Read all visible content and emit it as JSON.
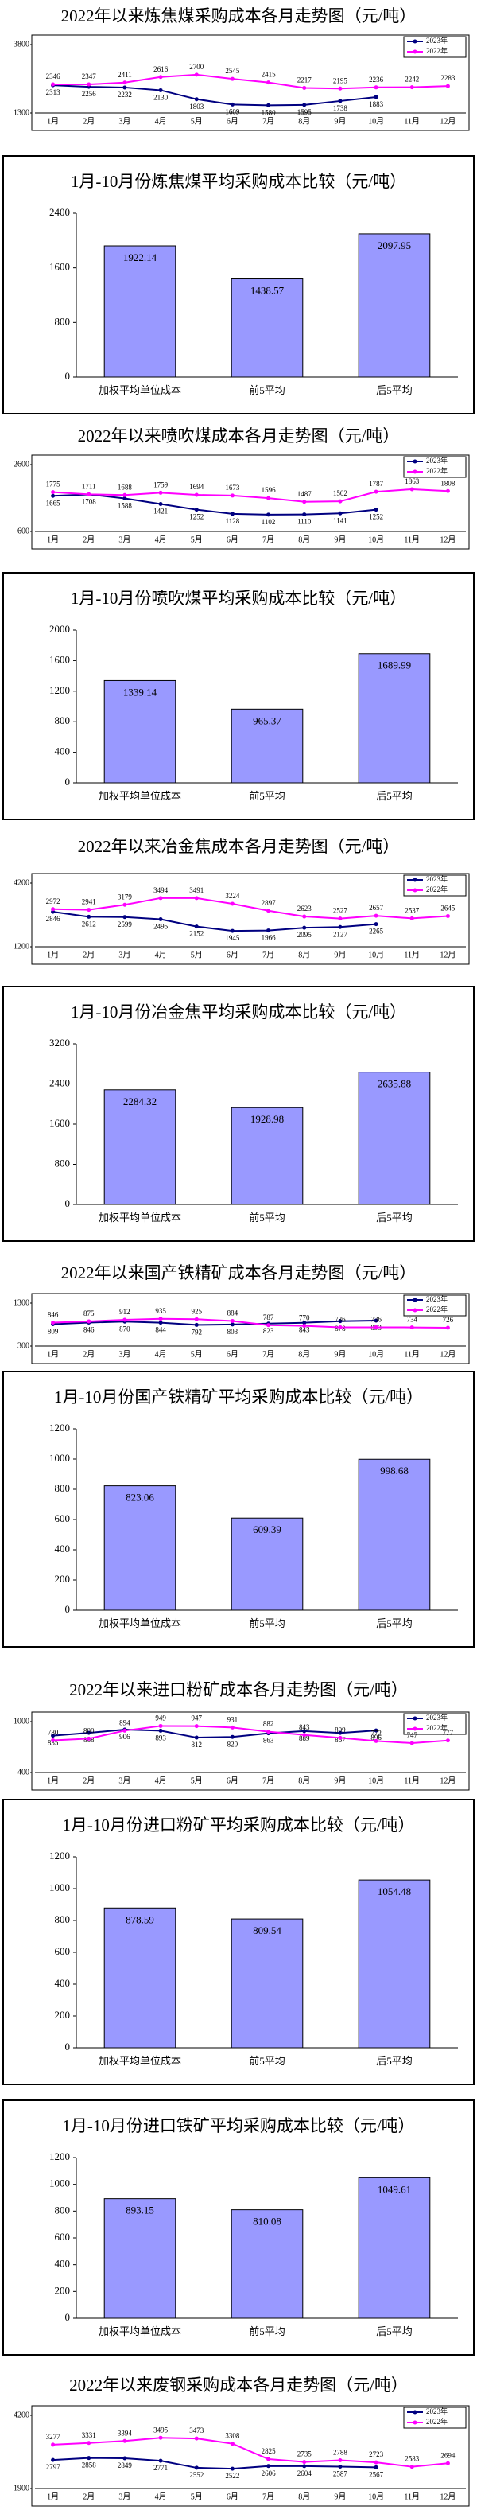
{
  "chart_data": [
    {
      "type": "line",
      "title": "2022年以来炼焦煤采购成本各月走势图（元/吨）",
      "categories": [
        "1月",
        "2月",
        "3月",
        "4月",
        "5月",
        "6月",
        "7月",
        "8月",
        "9月",
        "10月",
        "11月",
        "12月"
      ],
      "series": [
        {
          "name": "2023年",
          "color": "#000080",
          "values": [
            2313,
            2256,
            2232,
            2130,
            1803,
            1609,
            1580,
            1595,
            1738,
            1883,
            null,
            null
          ]
        },
        {
          "name": "2022年",
          "color": "#ff00ff",
          "values": [
            2346,
            2347,
            2411,
            2616,
            2700,
            2545,
            2415,
            2217,
            2195,
            2236,
            2242,
            2283
          ]
        }
      ],
      "ylim": [
        1300,
        3800
      ],
      "yticks": [
        1300,
        3800
      ]
    },
    {
      "type": "bar",
      "title": "1月-10月份炼焦煤平均采购成本比较（元/吨）",
      "categories": [
        "加权平均单位成本",
        "前5平均",
        "后5平均"
      ],
      "values": [
        1922.14,
        1438.57,
        2097.95
      ],
      "color": "#9999ff",
      "ylim": [
        0,
        2400
      ],
      "yticks": [
        0,
        800,
        1600,
        2400
      ]
    },
    {
      "type": "line",
      "title": "2022年以来喷吹煤成本各月走势图（元/吨）",
      "categories": [
        "1月",
        "2月",
        "3月",
        "4月",
        "5月",
        "6月",
        "7月",
        "8月",
        "9月",
        "10月",
        "11月",
        "12月"
      ],
      "series": [
        {
          "name": "2023年",
          "color": "#000080",
          "values": [
            1665,
            1708,
            1588,
            1421,
            1252,
            1128,
            1102,
            1110,
            1141,
            1252,
            null,
            null
          ]
        },
        {
          "name": "2022年",
          "color": "#ff00ff",
          "values": [
            1775,
            1711,
            1688,
            1759,
            1694,
            1673,
            1596,
            1487,
            1502,
            1787,
            1863,
            1808
          ]
        }
      ],
      "ylim": [
        600,
        2600
      ],
      "yticks": [
        600,
        2600
      ]
    },
    {
      "type": "bar",
      "title": "1月-10月份喷吹煤平均采购成本比较（元/吨）",
      "categories": [
        "加权平均单位成本",
        "前5平均",
        "后5平均"
      ],
      "values": [
        1339.14,
        965.37,
        1689.99
      ],
      "color": "#9999ff",
      "ylim": [
        0,
        2000
      ],
      "yticks": [
        0,
        400,
        800,
        1200,
        1600,
        2000
      ]
    },
    {
      "type": "line",
      "title": "2022年以来冶金焦成本各月走势图（元/吨）",
      "categories": [
        "1月",
        "2月",
        "3月",
        "4月",
        "5月",
        "6月",
        "7月",
        "8月",
        "9月",
        "10月",
        "11月",
        "12月"
      ],
      "series": [
        {
          "name": "2023年",
          "color": "#000080",
          "values": [
            2846,
            2612,
            2599,
            2495,
            2152,
            1945,
            1966,
            2095,
            2127,
            2265,
            null,
            null
          ]
        },
        {
          "name": "2022年",
          "color": "#ff00ff",
          "values": [
            2972,
            2941,
            3179,
            3494,
            3491,
            3224,
            2897,
            2623,
            2527,
            2657,
            2537,
            2645
          ]
        }
      ],
      "ylim": [
        1200,
        4200
      ],
      "yticks": [
        1200,
        4200
      ]
    },
    {
      "type": "bar",
      "title": "1月-10月份冶金焦平均采购成本比较（元/吨）",
      "categories": [
        "加权平均单位成本",
        "前5平均",
        "后5平均"
      ],
      "values": [
        2284.32,
        1928.98,
        2635.88
      ],
      "color": "#9999ff",
      "ylim": [
        0,
        3200
      ],
      "yticks": [
        0,
        800,
        1600,
        2400,
        3200
      ]
    },
    {
      "type": "line",
      "title": "2022年以来国产铁精矿成本各月走势图（元/吨）",
      "categories": [
        "1月",
        "2月",
        "3月",
        "4月",
        "5月",
        "6月",
        "7月",
        "8月",
        "9月",
        "10月",
        "11月",
        "12月"
      ],
      "series": [
        {
          "name": "2023年",
          "color": "#000080",
          "values": [
            809,
            846,
            870,
            844,
            792,
            803,
            823,
            843,
            878,
            893,
            null,
            null
          ]
        },
        {
          "name": "2022年",
          "color": "#ff00ff",
          "values": [
            846,
            875,
            912,
            935,
            925,
            884,
            787,
            770,
            736,
            736,
            734,
            726
          ]
        }
      ],
      "ylim": [
        300,
        1300
      ],
      "yticks": [
        300,
        1300
      ]
    },
    {
      "type": "bar",
      "title": "1月-10月份国产铁精矿平均采购成本比较（元/吨）",
      "categories": [
        "加权平均单位成本",
        "前5平均",
        "后5平均"
      ],
      "values": [
        823.06,
        609.39,
        998.68
      ],
      "color": "#9999ff",
      "ylim": [
        0,
        1200
      ],
      "yticks": [
        0,
        200,
        400,
        600,
        800,
        1000,
        1200
      ]
    },
    {
      "type": "line",
      "title": "2022年以来进口粉矿成本各月走势图（元/吨）",
      "categories": [
        "1月",
        "2月",
        "3月",
        "4月",
        "5月",
        "6月",
        "7月",
        "8月",
        "9月",
        "10月",
        "11月",
        "12月"
      ],
      "series": [
        {
          "name": "2023年",
          "color": "#000080",
          "values": [
            835,
            868,
            906,
            893,
            812,
            820,
            863,
            889,
            867,
            896,
            null,
            null
          ]
        },
        {
          "name": "2022年",
          "color": "#ff00ff",
          "values": [
            780,
            800,
            894,
            949,
            947,
            931,
            882,
            843,
            809,
            772,
            747,
            777
          ]
        }
      ],
      "ylim": [
        400,
        1000
      ],
      "yticks": [
        400,
        1000
      ]
    },
    {
      "type": "bar",
      "title": "1月-10月份进口粉矿平均采购成本比较（元/吨）",
      "categories": [
        "加权平均单位成本",
        "前5平均",
        "后5平均"
      ],
      "values": [
        878.59,
        809.54,
        1054.48
      ],
      "color": "#9999ff",
      "ylim": [
        0,
        1200
      ],
      "yticks": [
        0,
        200,
        400,
        600,
        800,
        1000,
        1200
      ]
    },
    {
      "type": "bar",
      "title": "1月-10月份进口铁矿平均采购成本比较（元/吨）",
      "categories": [
        "加权平均单位成本",
        "前5平均",
        "后5平均"
      ],
      "values": [
        893.15,
        810.08,
        1049.61
      ],
      "color": "#9999ff",
      "ylim": [
        0,
        1200
      ],
      "yticks": [
        0,
        200,
        400,
        600,
        800,
        1000,
        1200
      ]
    },
    {
      "type": "line",
      "title": "2022年以来废钢采购成本各月走势图（元/吨）",
      "categories": [
        "1月",
        "2月",
        "3月",
        "4月",
        "5月",
        "6月",
        "7月",
        "8月",
        "9月",
        "10月",
        "11月",
        "12月"
      ],
      "series": [
        {
          "name": "2023年",
          "color": "#000080",
          "values": [
            2797,
            2858,
            2849,
            2771,
            2552,
            2522,
            2606,
            2604,
            2587,
            2567,
            null,
            null
          ]
        },
        {
          "name": "2022年",
          "color": "#ff00ff",
          "values": [
            3277,
            3331,
            3394,
            3495,
            3473,
            3308,
            2825,
            2735,
            2788,
            2723,
            2583,
            2694
          ]
        }
      ],
      "ylim": [
        1900,
        4200
      ],
      "yticks": [
        1900,
        4200
      ]
    }
  ]
}
